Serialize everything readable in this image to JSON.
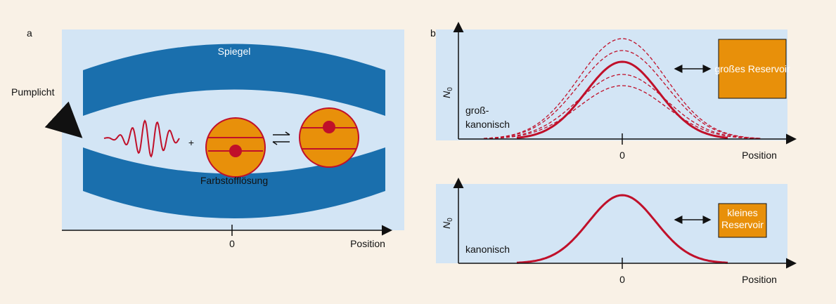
{
  "panel_a": {
    "label": "a",
    "pump": "Pumplicht",
    "mirror": "Spiegel",
    "plus": "+",
    "solution": "Farbstofflösung",
    "axis_zero": "0",
    "axis_label": "Position"
  },
  "panel_b": {
    "label": "b",
    "top": {
      "y_label": "N",
      "y_sub": "0",
      "ensemble": [
        "groß-",
        "kanonisch"
      ],
      "reservoir": "großes Reservoir",
      "axis_zero": "0",
      "axis_label": "Position"
    },
    "bottom": {
      "y_label": "N",
      "y_sub": "0",
      "ensemble": "kanonisch",
      "reservoir": [
        "kleines",
        "Reservoir"
      ],
      "axis_zero": "0",
      "axis_label": "Position"
    }
  }
}
